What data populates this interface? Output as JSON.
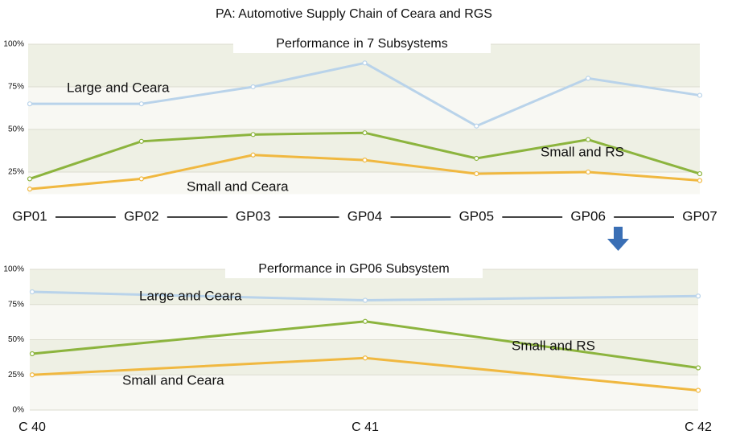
{
  "title": "PA: Automotive Supply Chain of Ceara and RGS",
  "chart_data": [
    {
      "type": "line",
      "title": "Performance in 7 Subsystems",
      "categories": [
        "GP01",
        "GP02",
        "GP03",
        "GP04",
        "GP05",
        "GP06",
        "GP07"
      ],
      "ylim": [
        12,
        100
      ],
      "yticks": [
        {
          "value": 25,
          "label": "25%"
        },
        {
          "value": 50,
          "label": "50%"
        },
        {
          "value": 75,
          "label": "75%"
        },
        {
          "value": 100,
          "label": "100%"
        }
      ],
      "series": [
        {
          "name": "Large and Ceara",
          "color": "#b9d3ea",
          "values": [
            65,
            65,
            75,
            89,
            52,
            80,
            70
          ]
        },
        {
          "name": "Small and RS",
          "color": "#8cb43e",
          "values": [
            21,
            43,
            47,
            48,
            33,
            44,
            24
          ]
        },
        {
          "name": "Small and Ceara",
          "color": "#f0b840",
          "values": [
            15,
            21,
            35,
            32,
            24,
            25,
            20
          ]
        }
      ]
    },
    {
      "type": "line",
      "title": "Performance in GP06 Subsystem",
      "categories": [
        "C 40",
        "C 41",
        "C 42"
      ],
      "ylim": [
        0,
        100
      ],
      "yticks": [
        {
          "value": 0,
          "label": "0%"
        },
        {
          "value": 25,
          "label": "25%"
        },
        {
          "value": 50,
          "label": "50%"
        },
        {
          "value": 75,
          "label": "75%"
        },
        {
          "value": 100,
          "label": "100%"
        }
      ],
      "series": [
        {
          "name": "Large and Ceara",
          "color": "#b9d3ea",
          "values": [
            84,
            78,
            81
          ]
        },
        {
          "name": "Small and RS",
          "color": "#8cb43e",
          "values": [
            40,
            63,
            30
          ]
        },
        {
          "name": "Small and Ceara",
          "color": "#f0b840",
          "values": [
            25,
            37,
            14
          ]
        }
      ]
    }
  ]
}
